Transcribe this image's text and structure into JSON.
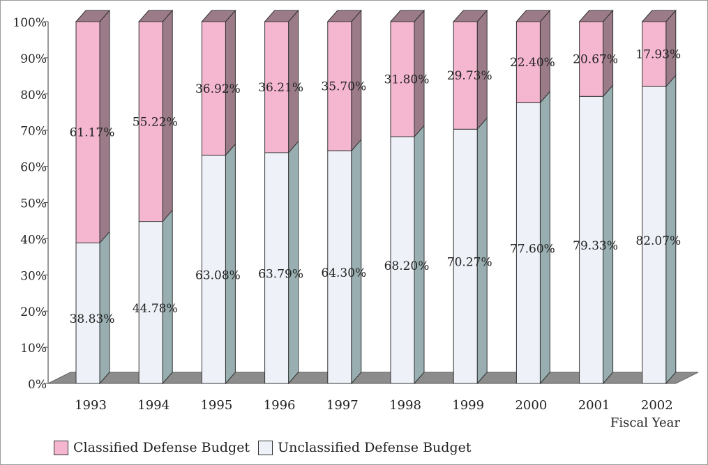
{
  "chart_data": {
    "type": "bar",
    "stacked": true,
    "percent": true,
    "categories": [
      "1993",
      "1994",
      "1995",
      "1996",
      "1997",
      "1998",
      "1999",
      "2000",
      "2001",
      "2002"
    ],
    "series": [
      {
        "name": "Unclassified Defense Budget",
        "values": [
          38.83,
          44.78,
          63.08,
          63.79,
          64.3,
          68.2,
          70.27,
          77.6,
          79.33,
          82.07
        ],
        "labels": [
          "38.83%",
          "44.78%",
          "63.08%",
          "63.79%",
          "64.30%",
          "68.20%",
          "70.27%",
          "77.60%",
          "79.33%",
          "82.07%"
        ],
        "color": "#eef2f8",
        "side_color": "#98aeb0"
      },
      {
        "name": "Classified Defense Budget",
        "values": [
          61.17,
          55.22,
          36.92,
          36.21,
          35.7,
          31.8,
          29.73,
          22.4,
          20.67,
          17.93
        ],
        "labels": [
          "61.17%",
          "55.22%",
          "36.92%",
          "36.21%",
          "35.70%",
          "31.80%",
          "29.73%",
          "22.40%",
          "20.67%",
          "17.93%"
        ],
        "color": "#f5b6d0",
        "side_color": "#9b7b88"
      }
    ],
    "y_ticks": [
      "0%",
      "10%",
      "20%",
      "30%",
      "40%",
      "50%",
      "60%",
      "70%",
      "80%",
      "90%",
      "100%"
    ],
    "ylim": [
      0,
      100
    ],
    "xlabel": "Fiscal Year",
    "ylabel": "",
    "legend_position": "bottom-left",
    "grid": false
  },
  "colors": {
    "floor": "#8c8c8c",
    "outline": "#333333",
    "text": "#222222"
  }
}
